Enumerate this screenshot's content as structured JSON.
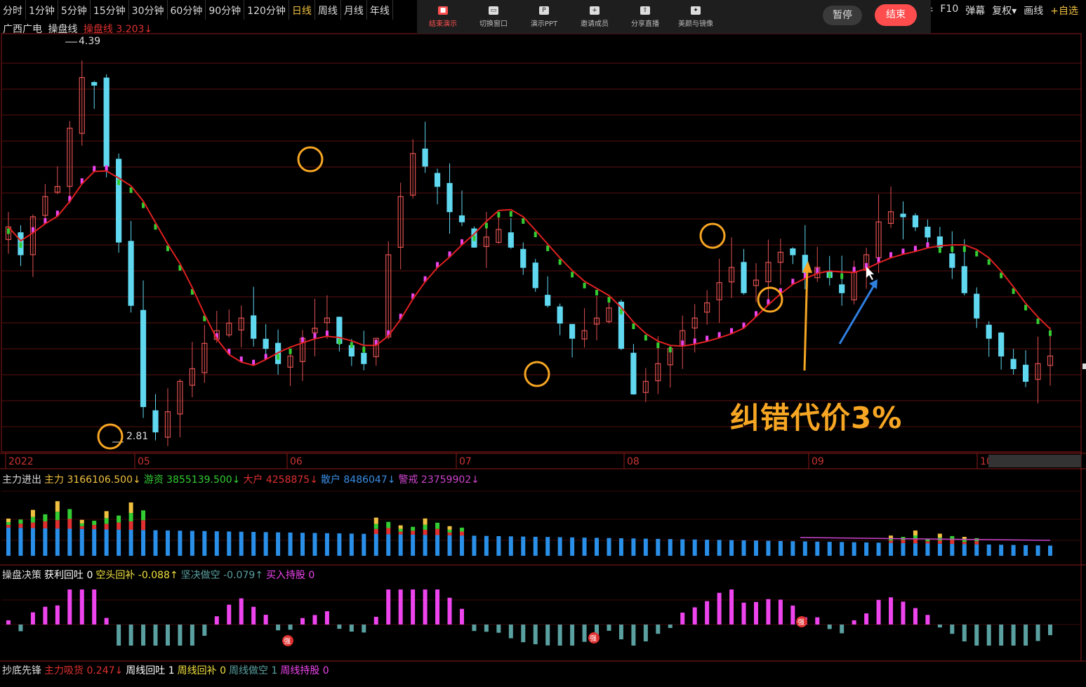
{
  "period_tabs": [
    {
      "label": "分时"
    },
    {
      "label": "1分钟"
    },
    {
      "label": "5分钟"
    },
    {
      "label": "15分钟"
    },
    {
      "label": "30分钟"
    },
    {
      "label": "60分钟"
    },
    {
      "label": "90分钟"
    },
    {
      "label": "120分钟"
    },
    {
      "label": "日线",
      "active": true
    },
    {
      "label": "周线"
    },
    {
      "label": "月线"
    },
    {
      "label": "年线"
    }
  ],
  "right_tabs": [
    {
      "label": "事件"
    },
    {
      "label": "F10"
    },
    {
      "label": "弹幕"
    },
    {
      "label": "复权▾"
    },
    {
      "label": "画线"
    },
    {
      "label": "+自选"
    }
  ],
  "presenter_bar": {
    "items": [
      {
        "label": "结束演示",
        "icon": "end-presentation-icon"
      },
      {
        "label": "切换窗口",
        "icon": "switch-window-icon"
      },
      {
        "label": "演示PPT",
        "icon": "ppt-icon"
      },
      {
        "label": "邀请成员",
        "icon": "invite-member-icon"
      },
      {
        "label": "分享直播",
        "icon": "share-live-icon"
      },
      {
        "label": "美颜与镜像",
        "icon": "beauty-mirror-icon"
      }
    ],
    "pause_label": "暂停",
    "end_label": "结束"
  },
  "main_legend": {
    "stock": "广西广电",
    "indicator": "操盘线",
    "indicator_value": "操盘线 3.203↓"
  },
  "price_high": "4.39",
  "price_low": "2.81",
  "date_labels": [
    "2022",
    "05",
    "06",
    "07",
    "08",
    "09",
    "10"
  ],
  "annotation": "纠错代价3%",
  "panel1_legend": {
    "title": "主力进出",
    "items": [
      {
        "text": "主力 3166106.500↓",
        "color": "#f0c040"
      },
      {
        "text": "游资 3855139.500↓",
        "color": "#33cc33"
      },
      {
        "text": "大户 4258875↓",
        "color": "#e03030"
      },
      {
        "text": "散户 8486047↓",
        "color": "#3a8ee6"
      },
      {
        "text": "警戒 23759902↓",
        "color": "#cc44cc"
      }
    ]
  },
  "panel2_legend": {
    "title": "操盘决策",
    "items": [
      {
        "text": "获利回吐 0",
        "color": "#ffffff"
      },
      {
        "text": "空头回补 -0.088↑",
        "color": "#f0e040"
      },
      {
        "text": "坚决做空 -0.079↑",
        "color": "#5aa0a0"
      },
      {
        "text": "买入持股 0",
        "color": "#ee44ee"
      }
    ],
    "marker": "强"
  },
  "panel3_legend": {
    "title": "抄底先锋",
    "items": [
      {
        "text": "主力吸货 0.247↓",
        "color": "#e03030"
      },
      {
        "text": "周线回吐 1",
        "color": "#ffffff"
      },
      {
        "text": "周线回补 0",
        "color": "#f0e040"
      },
      {
        "text": "周线做空 1",
        "color": "#5aa0a0"
      },
      {
        "text": "周线持股 0",
        "color": "#ee44ee"
      }
    ]
  },
  "chart_data": {
    "type": "candlestick",
    "ma_line": "操盘线",
    "price_range": [
      2.81,
      4.39
    ],
    "close_series": [
      3.66,
      3.55,
      3.7,
      3.78,
      3.82,
      4.05,
      4.25,
      4.22,
      3.9,
      3.6,
      3.35,
      2.95,
      2.85,
      2.93,
      3.05,
      3.1,
      3.2,
      3.25,
      3.28,
      3.3,
      3.22,
      3.18,
      3.12,
      3.15,
      3.22,
      3.26,
      3.3,
      3.2,
      3.15,
      3.12,
      3.22,
      3.55,
      3.78,
      3.95,
      3.9,
      3.82,
      3.72,
      3.68,
      3.58,
      3.62,
      3.65,
      3.58,
      3.5,
      3.42,
      3.35,
      3.28,
      3.22,
      3.25,
      3.3,
      3.34,
      3.18,
      3.0,
      3.05,
      3.12,
      3.18,
      3.25,
      3.3,
      3.36,
      3.44,
      3.5,
      3.4,
      3.45,
      3.52,
      3.56,
      3.55,
      3.48,
      3.5,
      3.46,
      3.4,
      3.48,
      3.55,
      3.68,
      3.72,
      3.7,
      3.66,
      3.62,
      3.58,
      3.5,
      3.4,
      3.3,
      3.22,
      3.15,
      3.1,
      3.05,
      3.12,
      3.15
    ]
  }
}
